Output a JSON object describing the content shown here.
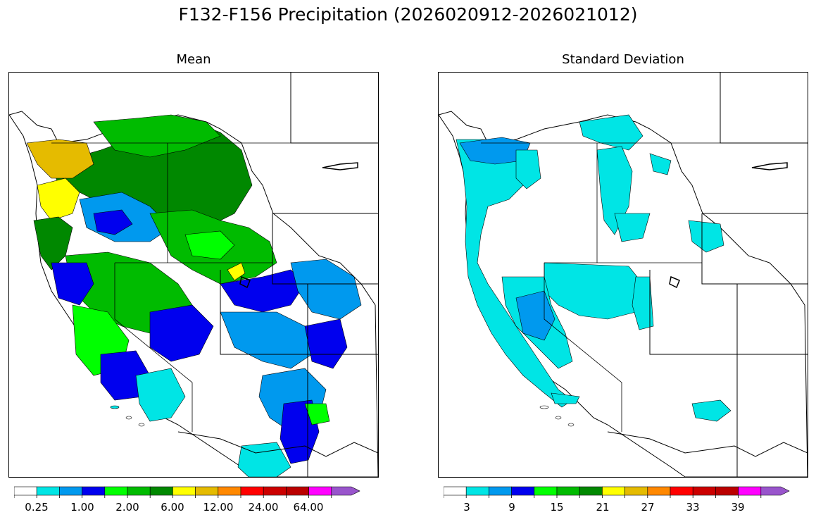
{
  "title": "F132-F156 Precipitation (2026020912-2026021012)",
  "panels": [
    {
      "title": "Mean",
      "colorbar": {
        "colors": [
          "#ffffff",
          "#00e5e5",
          "#0099ee",
          "#0000ee",
          "#00ff00",
          "#00bb00",
          "#008800",
          "#ffff00",
          "#e5bb00",
          "#ff8800",
          "#ff0000",
          "#cc0000",
          "#bb0000",
          "#ff00ff",
          "#9955cc"
        ],
        "tick_labels": [
          "0.25",
          "1.00",
          "2.00",
          "6.00",
          "12.00",
          "24.00",
          "64.00"
        ],
        "extend": "max"
      }
    },
    {
      "title": "Standard Deviation",
      "colorbar": {
        "colors": [
          "#ffffff",
          "#00e5e5",
          "#0099ee",
          "#0000ee",
          "#00ff00",
          "#00bb00",
          "#008800",
          "#ffff00",
          "#e5bb00",
          "#ff8800",
          "#ff0000",
          "#cc0000",
          "#bb0000",
          "#ff00ff",
          "#9955cc"
        ],
        "tick_labels": [
          "3",
          "9",
          "15",
          "21",
          "27",
          "33",
          "39"
        ],
        "extend": "max"
      }
    }
  ]
}
